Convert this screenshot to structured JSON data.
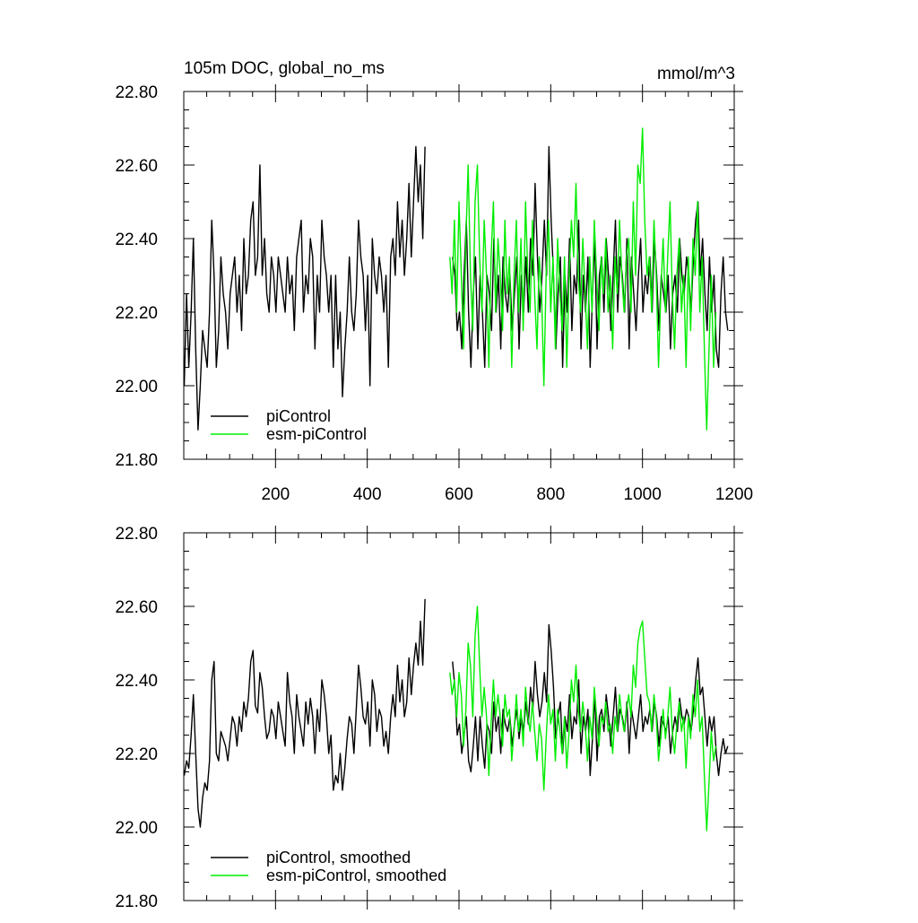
{
  "chart_data": [
    {
      "type": "line",
      "title": "105m DOC, global_no_ms",
      "units": "mmol/m^3",
      "xlim": [
        0,
        1200
      ],
      "ylim": [
        21.8,
        22.8
      ],
      "x_ticks": [
        200,
        400,
        600,
        800,
        1000,
        1200
      ],
      "x_tick_labels": [
        "200",
        "400",
        "600",
        "800",
        "1000",
        "1200"
      ],
      "y_ticks": [
        21.8,
        22.0,
        22.2,
        22.4,
        22.6,
        22.8
      ],
      "y_tick_labels": [
        "21.80",
        "22.00",
        "22.20",
        "22.40",
        "22.60",
        "22.80"
      ],
      "grid": false,
      "legend_position": "bottom-left",
      "series": [
        {
          "name": "piControl",
          "color": "#000000",
          "x_start": 1,
          "x_step": 5,
          "values": [
            22.0,
            22.25,
            22.05,
            22.2,
            22.4,
            22.1,
            21.88,
            22.0,
            22.15,
            22.1,
            22.05,
            22.2,
            22.45,
            22.3,
            22.05,
            22.15,
            22.35,
            22.25,
            22.2,
            22.1,
            22.25,
            22.3,
            22.35,
            22.2,
            22.3,
            22.15,
            22.4,
            22.25,
            22.3,
            22.45,
            22.5,
            22.3,
            22.35,
            22.6,
            22.3,
            22.4,
            22.25,
            22.2,
            22.35,
            22.3,
            22.2,
            22.35,
            22.3,
            22.25,
            22.2,
            22.35,
            22.25,
            22.3,
            22.15,
            22.35,
            22.4,
            22.45,
            22.2,
            22.3,
            22.25,
            22.4,
            22.35,
            22.1,
            22.3,
            22.2,
            22.45,
            22.35,
            22.3,
            22.2,
            22.3,
            22.05,
            22.3,
            22.1,
            22.2,
            21.97,
            22.1,
            22.2,
            22.35,
            22.2,
            22.15,
            22.25,
            22.45,
            22.35,
            22.3,
            22.15,
            22.3,
            22.0,
            22.4,
            22.3,
            22.25,
            22.35,
            22.3,
            22.2,
            22.3,
            22.05,
            22.35,
            22.4,
            22.3,
            22.5,
            22.35,
            22.45,
            22.3,
            22.4,
            22.55,
            22.35,
            22.5,
            22.65,
            22.5,
            22.6,
            22.4,
            22.65
          ],
          "visible": true
        },
        {
          "name": "piControl",
          "color": "#000000",
          "x_start": 586,
          "x_step": 5,
          "values": [
            22.35,
            22.3,
            22.15,
            22.2,
            22.1,
            22.3,
            22.45,
            22.2,
            22.05,
            22.25,
            22.35,
            22.1,
            22.3,
            22.2,
            22.05,
            22.3,
            22.25,
            22.15,
            22.4,
            22.2,
            22.3,
            22.1,
            22.35,
            22.25,
            22.2,
            22.3,
            22.15,
            22.25,
            22.35,
            22.1,
            22.3,
            22.2,
            22.35,
            22.2,
            22.4,
            22.3,
            22.55,
            22.35,
            22.2,
            22.3,
            22.45,
            22.3,
            22.65,
            22.45,
            22.3,
            22.1,
            22.25,
            22.35,
            22.05,
            22.3,
            22.2,
            22.4,
            22.15,
            22.3,
            22.25,
            22.45,
            22.1,
            22.3,
            22.2,
            22.35,
            22.05,
            22.25,
            22.4,
            22.1,
            22.3,
            22.35,
            22.2,
            22.4,
            22.3,
            22.15,
            22.3,
            22.45,
            22.2,
            22.35,
            22.3,
            22.2,
            22.4,
            22.1,
            22.35,
            22.25,
            22.15,
            22.3,
            22.4,
            22.2,
            22.3,
            22.25,
            22.35,
            22.2,
            22.4,
            22.3,
            22.15,
            22.3,
            22.25,
            22.2,
            22.3,
            22.1,
            22.25,
            22.3,
            22.2,
            22.4,
            22.3,
            22.25,
            22.35,
            22.3,
            22.2,
            22.35,
            22.45,
            22.5,
            22.3,
            22.4,
            22.25,
            22.15,
            22.35,
            22.2,
            22.3,
            22.1,
            22.05,
            22.25,
            22.35,
            22.2,
            22.15
          ],
          "visible": true
        },
        {
          "name": "esm-piControl",
          "color": "#00ee00",
          "x_start": 580,
          "x_step": 5,
          "values": [
            22.35,
            22.25,
            22.45,
            22.2,
            22.5,
            22.3,
            22.1,
            22.4,
            22.6,
            22.3,
            22.15,
            22.5,
            22.6,
            22.35,
            22.2,
            22.45,
            22.3,
            22.05,
            22.35,
            22.5,
            22.2,
            22.4,
            22.3,
            22.15,
            22.45,
            22.25,
            22.35,
            22.05,
            22.3,
            22.45,
            22.2,
            22.4,
            22.15,
            22.5,
            22.3,
            22.2,
            22.45,
            22.25,
            22.1,
            22.35,
            22.25,
            22.0,
            22.3,
            22.45,
            22.2,
            22.35,
            22.1,
            22.4,
            22.25,
            22.15,
            22.35,
            22.05,
            22.3,
            22.45,
            22.35,
            22.55,
            22.3,
            22.2,
            22.4,
            22.25,
            22.1,
            22.35,
            22.2,
            22.45,
            22.3,
            22.15,
            22.35,
            22.25,
            22.4,
            22.2,
            22.3,
            22.1,
            22.35,
            22.25,
            22.45,
            22.3,
            22.2,
            22.35,
            22.4,
            22.2,
            22.5,
            22.3,
            22.6,
            22.55,
            22.7,
            22.45,
            22.3,
            22.35,
            22.2,
            22.45,
            22.3,
            22.05,
            22.25,
            22.4,
            22.2,
            22.35,
            22.5,
            22.25,
            22.1,
            22.3,
            22.4,
            22.2,
            22.3,
            22.05,
            22.35,
            22.15,
            22.4,
            22.3,
            22.5,
            22.2,
            22.35,
            22.1,
            21.88,
            22.1,
            22.3,
            22.05,
            22.2
          ],
          "visible": true
        }
      ],
      "legend": [
        {
          "label": "piControl",
          "color": "#000000"
        },
        {
          "label": "esm-piControl",
          "color": "#00ee00"
        }
      ]
    },
    {
      "type": "line",
      "title": "",
      "xlim": [
        0,
        1200
      ],
      "ylim": [
        21.8,
        22.8
      ],
      "y_ticks": [
        21.8,
        22.0,
        22.2,
        22.4,
        22.6,
        22.8
      ],
      "y_tick_labels": [
        "21.80",
        "22.00",
        "22.20",
        "22.40",
        "22.60",
        "22.80"
      ],
      "grid": false,
      "legend_position": "bottom-left",
      "series": [
        {
          "name": "piControl, smoothed",
          "color": "#000000",
          "x_start": 1,
          "x_step": 5,
          "values": [
            22.14,
            22.18,
            22.16,
            22.25,
            22.36,
            22.2,
            22.05,
            22.0,
            22.08,
            22.12,
            22.1,
            22.18,
            22.4,
            22.45,
            22.2,
            22.18,
            22.26,
            22.24,
            22.22,
            22.18,
            22.24,
            22.3,
            22.28,
            22.22,
            22.3,
            22.26,
            22.34,
            22.3,
            22.35,
            22.45,
            22.48,
            22.33,
            22.31,
            22.42,
            22.38,
            22.3,
            22.24,
            22.26,
            22.32,
            22.3,
            22.24,
            22.34,
            22.3,
            22.26,
            22.22,
            22.42,
            22.34,
            22.3,
            22.2,
            22.36,
            22.3,
            22.26,
            22.22,
            22.34,
            22.28,
            22.35,
            22.3,
            22.2,
            22.32,
            22.26,
            22.4,
            22.36,
            22.3,
            22.2,
            22.25,
            22.1,
            22.14,
            22.12,
            22.2,
            22.1,
            22.16,
            22.24,
            22.3,
            22.28,
            22.2,
            22.32,
            22.44,
            22.38,
            22.3,
            22.28,
            22.34,
            22.22,
            22.4,
            22.36,
            22.26,
            22.32,
            22.3,
            22.22,
            22.26,
            22.2,
            22.3,
            22.36,
            22.3,
            22.44,
            22.34,
            22.4,
            22.3,
            22.34,
            22.46,
            22.36,
            22.44,
            22.5,
            22.44,
            22.56,
            22.44,
            22.62
          ],
          "visible": true
        },
        {
          "name": "piControl, smoothed",
          "color": "#000000",
          "x_start": 586,
          "x_step": 5,
          "values": [
            22.45,
            22.38,
            22.25,
            22.28,
            22.2,
            22.25,
            22.3,
            22.18,
            22.15,
            22.22,
            22.3,
            22.18,
            22.3,
            22.22,
            22.16,
            22.28,
            22.26,
            22.2,
            22.34,
            22.26,
            22.3,
            22.2,
            22.32,
            22.28,
            22.26,
            22.3,
            22.22,
            22.28,
            22.32,
            22.24,
            22.3,
            22.26,
            22.34,
            22.28,
            22.38,
            22.32,
            22.45,
            22.36,
            22.3,
            22.34,
            22.42,
            22.34,
            22.55,
            22.48,
            22.38,
            22.24,
            22.3,
            22.34,
            22.2,
            22.3,
            22.26,
            22.36,
            22.24,
            22.3,
            22.28,
            22.4,
            22.2,
            22.3,
            22.26,
            22.32,
            22.14,
            22.24,
            22.36,
            22.18,
            22.3,
            22.32,
            22.26,
            22.36,
            22.3,
            22.22,
            22.3,
            22.38,
            22.26,
            22.32,
            22.3,
            22.26,
            22.34,
            22.2,
            22.32,
            22.28,
            22.24,
            22.3,
            22.36,
            22.26,
            22.3,
            22.28,
            22.32,
            22.26,
            22.34,
            22.3,
            22.22,
            22.3,
            22.28,
            22.26,
            22.3,
            22.2,
            22.26,
            22.3,
            22.26,
            22.35,
            22.3,
            22.28,
            22.32,
            22.3,
            22.26,
            22.32,
            22.4,
            22.46,
            22.36,
            22.38,
            22.3,
            22.22,
            22.3,
            22.26,
            22.3,
            22.2,
            22.14,
            22.2,
            22.24,
            22.2,
            22.22
          ],
          "visible": true
        },
        {
          "name": "esm-piControl, smoothed",
          "color": "#00ee00",
          "x_start": 580,
          "x_step": 5,
          "values": [
            22.42,
            22.36,
            22.4,
            22.3,
            22.42,
            22.36,
            22.22,
            22.32,
            22.5,
            22.44,
            22.3,
            22.52,
            22.6,
            22.44,
            22.3,
            22.38,
            22.3,
            22.14,
            22.28,
            22.4,
            22.3,
            22.36,
            22.3,
            22.22,
            22.36,
            22.3,
            22.32,
            22.18,
            22.26,
            22.36,
            22.26,
            22.32,
            22.22,
            22.38,
            22.3,
            22.26,
            22.34,
            22.26,
            22.18,
            22.28,
            22.24,
            22.1,
            22.24,
            22.36,
            22.28,
            22.32,
            22.18,
            22.32,
            22.26,
            22.2,
            22.3,
            22.16,
            22.26,
            22.4,
            22.34,
            22.44,
            22.32,
            22.26,
            22.34,
            22.28,
            22.18,
            22.3,
            22.24,
            22.38,
            22.3,
            22.22,
            22.3,
            22.28,
            22.34,
            22.26,
            22.28,
            22.2,
            22.3,
            22.26,
            22.36,
            22.3,
            22.26,
            22.32,
            22.36,
            22.3,
            22.44,
            22.38,
            22.5,
            22.54,
            22.56,
            22.46,
            22.36,
            22.34,
            22.26,
            22.36,
            22.3,
            22.18,
            22.24,
            22.32,
            22.24,
            22.3,
            22.38,
            22.26,
            22.2,
            22.28,
            22.34,
            22.26,
            22.3,
            22.16,
            22.3,
            22.24,
            22.36,
            22.3,
            22.4,
            22.26,
            22.3,
            22.14,
            21.99,
            22.12,
            22.26,
            22.18,
            22.22
          ],
          "visible": true
        }
      ],
      "legend": [
        {
          "label": "piControl, smoothed",
          "color": "#000000"
        },
        {
          "label": "esm-piControl, smoothed",
          "color": "#00ee00"
        }
      ]
    }
  ]
}
